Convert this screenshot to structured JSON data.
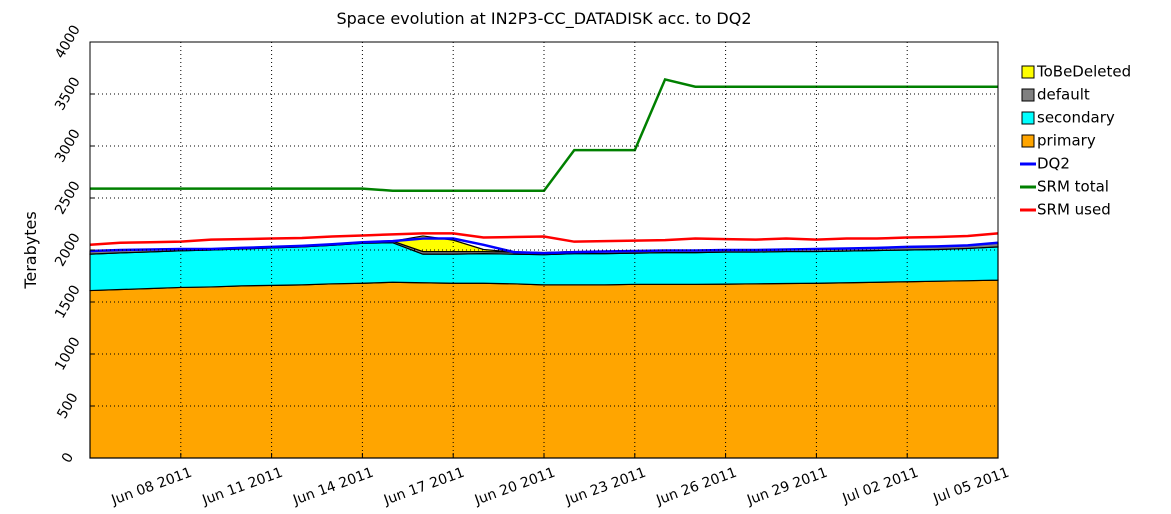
{
  "chart_data": {
    "type": "stacked-area",
    "title": "Space evolution at IN2P3-CC_DATADISK acc. to DQ2",
    "y_label": "Terabytes",
    "x": [
      "2011-06-05",
      "2011-06-06",
      "2011-06-07",
      "2011-06-08",
      "2011-06-09",
      "2011-06-10",
      "2011-06-11",
      "2011-06-12",
      "2011-06-13",
      "2011-06-14",
      "2011-06-15",
      "2011-06-16",
      "2011-06-17",
      "2011-06-18",
      "2011-06-19",
      "2011-06-20",
      "2011-06-21",
      "2011-06-22",
      "2011-06-23",
      "2011-06-24",
      "2011-06-25",
      "2011-06-26",
      "2011-06-27",
      "2011-06-28",
      "2011-06-29",
      "2011-06-30",
      "2011-07-01",
      "2011-07-02",
      "2011-07-03",
      "2011-07-04",
      "2011-07-05"
    ],
    "xlim": [
      "2011-06-05",
      "2011-07-05"
    ],
    "xticks": [
      {
        "value": "2011-06-08",
        "label": "Jun 08 2011"
      },
      {
        "value": "2011-06-11",
        "label": "Jun 11 2011"
      },
      {
        "value": "2011-06-14",
        "label": "Jun 14 2011"
      },
      {
        "value": "2011-06-17",
        "label": "Jun 17 2011"
      },
      {
        "value": "2011-06-20",
        "label": "Jun 20 2011"
      },
      {
        "value": "2011-06-23",
        "label": "Jun 23 2011"
      },
      {
        "value": "2011-06-26",
        "label": "Jun 26 2011"
      },
      {
        "value": "2011-06-29",
        "label": "Jun 29 2011"
      },
      {
        "value": "2011-07-02",
        "label": "Jul 02 2011"
      },
      {
        "value": "2011-07-05",
        "label": "Jul 05 2011"
      }
    ],
    "ylim": [
      0,
      4000
    ],
    "yticks": [
      0,
      500,
      1000,
      1500,
      2000,
      2500,
      3000,
      3500,
      4000
    ],
    "grid": true,
    "legend": "right",
    "series": [
      {
        "name": "ToBeDeleted",
        "type": "area",
        "color": "#ffff00",
        "values": [
          0,
          0,
          0,
          0,
          0,
          0,
          0,
          0,
          0,
          0,
          0,
          150,
          110,
          20,
          0,
          0,
          0,
          0,
          0,
          0,
          0,
          0,
          0,
          0,
          0,
          0,
          0,
          0,
          0,
          0,
          0
        ]
      },
      {
        "name": "default",
        "type": "area",
        "color": "#808080",
        "values": [
          30,
          30,
          25,
          20,
          10,
          10,
          10,
          10,
          10,
          10,
          15,
          25,
          25,
          20,
          20,
          20,
          20,
          20,
          20,
          20,
          20,
          20,
          20,
          20,
          25,
          25,
          25,
          30,
          30,
          30,
          40
        ]
      },
      {
        "name": "secondary",
        "type": "area",
        "color": "#00ffff",
        "values": [
          350,
          352,
          352,
          352,
          355,
          355,
          360,
          365,
          370,
          385,
          380,
          275,
          280,
          285,
          285,
          290,
          300,
          300,
          300,
          305,
          305,
          308,
          305,
          307,
          305,
          305,
          305,
          305,
          305,
          310,
          320
        ]
      },
      {
        "name": "primary",
        "type": "area",
        "color": "#ffa500",
        "values": [
          1610,
          1620,
          1630,
          1640,
          1645,
          1655,
          1660,
          1665,
          1675,
          1680,
          1690,
          1685,
          1680,
          1680,
          1675,
          1665,
          1665,
          1665,
          1670,
          1670,
          1670,
          1672,
          1675,
          1678,
          1680,
          1685,
          1690,
          1695,
          1700,
          1705,
          1710
        ]
      },
      {
        "name": "DQ2",
        "type": "line",
        "color": "#0000ff",
        "values": [
          1990,
          2000,
          2005,
          2010,
          2010,
          2020,
          2030,
          2040,
          2055,
          2075,
          2085,
          2110,
          2110,
          2050,
          1980,
          1970,
          1980,
          1985,
          1990,
          1995,
          1995,
          2000,
          2000,
          2005,
          2010,
          2015,
          2020,
          2030,
          2035,
          2045,
          2070
        ]
      },
      {
        "name": "SRM total",
        "type": "line",
        "color": "#008000",
        "values": [
          2590,
          2590,
          2590,
          2590,
          2590,
          2590,
          2590,
          2590,
          2590,
          2590,
          2570,
          2570,
          2570,
          2570,
          2570,
          2570,
          2960,
          2960,
          2960,
          3640,
          3570,
          3570,
          3570,
          3570,
          3570,
          3570,
          3570,
          3570,
          3570,
          3570,
          3570
        ]
      },
      {
        "name": "SRM used",
        "type": "line",
        "color": "#ff0000",
        "values": [
          2050,
          2070,
          2075,
          2080,
          2100,
          2105,
          2110,
          2115,
          2130,
          2140,
          2150,
          2160,
          2160,
          2120,
          2125,
          2130,
          2080,
          2085,
          2090,
          2095,
          2110,
          2105,
          2100,
          2110,
          2100,
          2110,
          2110,
          2120,
          2125,
          2135,
          2160
        ]
      }
    ]
  }
}
